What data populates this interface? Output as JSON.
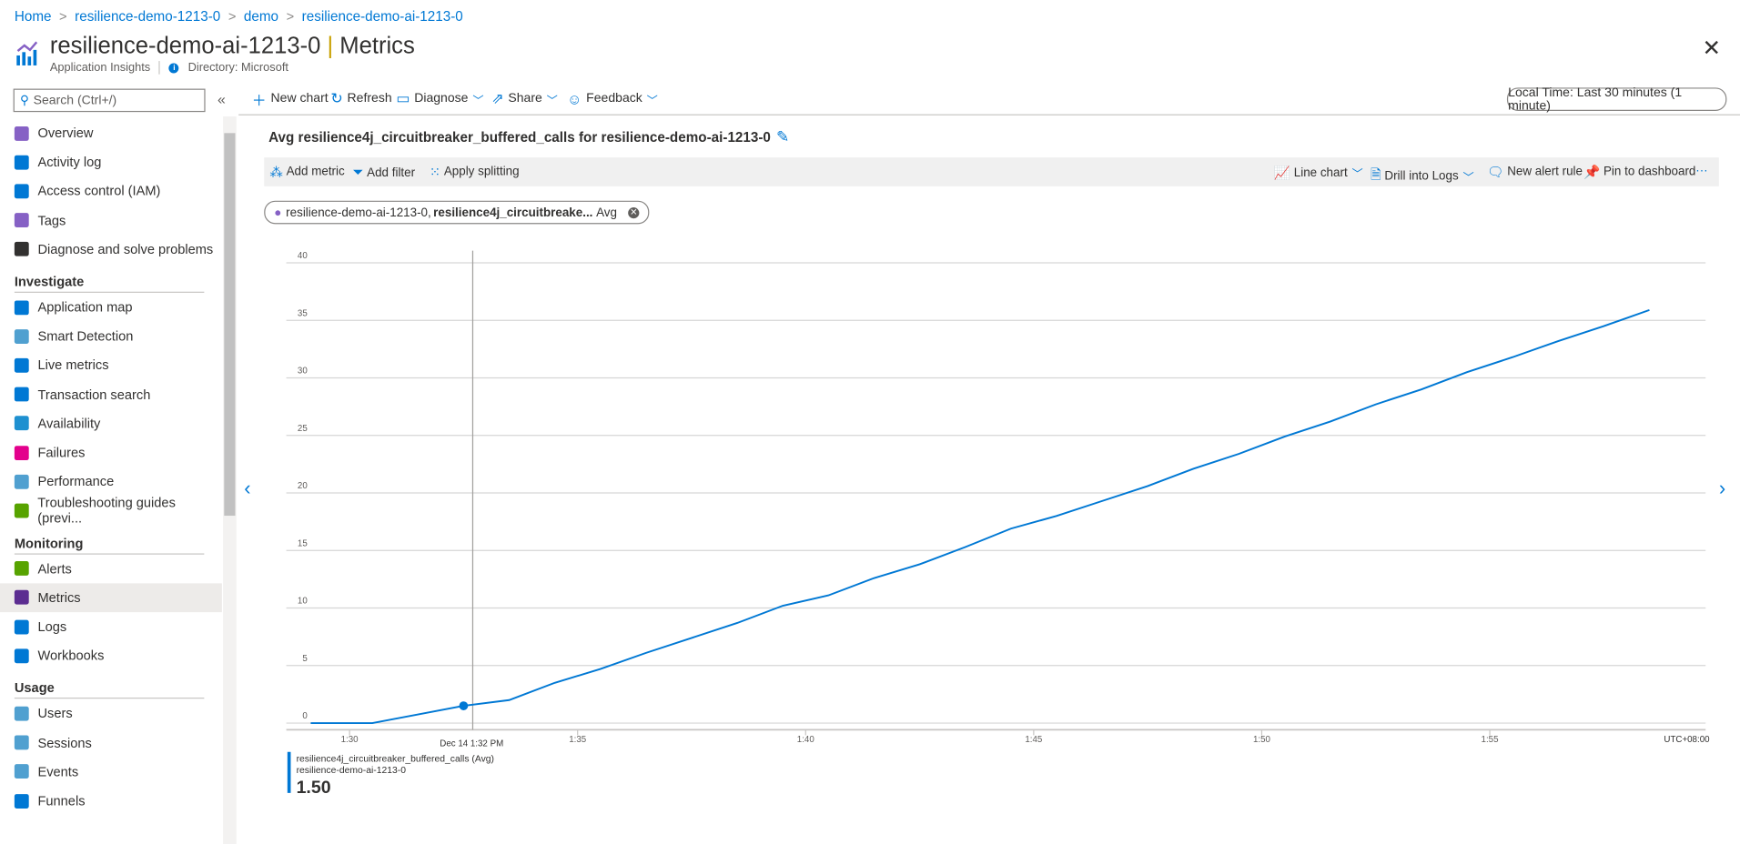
{
  "breadcrumb": [
    "Home",
    "resilience-demo-1213-0",
    "demo",
    "resilience-demo-ai-1213-0"
  ],
  "header": {
    "resource": "resilience-demo-ai-1213-0",
    "page": "Metrics",
    "subtitle": "Application Insights",
    "directory": "Directory: Microsoft"
  },
  "search": {
    "placeholder": "Search (Ctrl+/)"
  },
  "sidebar": {
    "top": [
      {
        "label": "Overview",
        "icon": "lightbulb-icon",
        "color": "#8661c5"
      },
      {
        "label": "Activity log",
        "icon": "log-icon",
        "color": "#0078d4"
      },
      {
        "label": "Access control (IAM)",
        "icon": "people-icon",
        "color": "#0078d4"
      },
      {
        "label": "Tags",
        "icon": "tag-icon",
        "color": "#8661c5"
      },
      {
        "label": "Diagnose and solve problems",
        "icon": "wrench-icon",
        "color": "#323130"
      }
    ],
    "sections": [
      {
        "title": "Investigate",
        "items": [
          {
            "label": "Application map",
            "icon": "app-map-icon",
            "color": "#0078d4"
          },
          {
            "label": "Smart Detection",
            "icon": "smart-detection-icon",
            "color": "#50a0d0"
          },
          {
            "label": "Live metrics",
            "icon": "pulse-icon",
            "color": "#0078d4"
          },
          {
            "label": "Transaction search",
            "icon": "search-icon",
            "color": "#0078d4"
          },
          {
            "label": "Availability",
            "icon": "globe-icon",
            "color": "#1e90d0"
          },
          {
            "label": "Failures",
            "icon": "failures-icon",
            "color": "#e3008c"
          },
          {
            "label": "Performance",
            "icon": "performance-icon",
            "color": "#50a0d0"
          },
          {
            "label": "Troubleshooting guides (previ...",
            "icon": "guide-icon",
            "color": "#57a300"
          }
        ]
      },
      {
        "title": "Monitoring",
        "items": [
          {
            "label": "Alerts",
            "icon": "alert-icon",
            "color": "#57a300"
          },
          {
            "label": "Metrics",
            "icon": "metrics-icon",
            "color": "#5c2d91",
            "active": true
          },
          {
            "label": "Logs",
            "icon": "logs-icon",
            "color": "#0078d4"
          },
          {
            "label": "Workbooks",
            "icon": "workbook-icon",
            "color": "#0078d4"
          }
        ]
      },
      {
        "title": "Usage",
        "items": [
          {
            "label": "Users",
            "icon": "user-icon",
            "color": "#50a0d0"
          },
          {
            "label": "Sessions",
            "icon": "sessions-icon",
            "color": "#50a0d0"
          },
          {
            "label": "Events",
            "icon": "events-icon",
            "color": "#50a0d0"
          },
          {
            "label": "Funnels",
            "icon": "funnel-icon",
            "color": "#0078d4"
          }
        ]
      }
    ]
  },
  "toolbar": {
    "new_chart": "New chart",
    "refresh": "Refresh",
    "diagnose": "Diagnose",
    "share": "Share",
    "feedback": "Feedback",
    "time_range": "Local Time: Last 30 minutes (1 minute)"
  },
  "chart_title": "Avg resilience4j_circuitbreaker_buffered_calls for resilience-demo-ai-1213-0",
  "metric_toolbar": {
    "add_metric": "Add metric",
    "add_filter": "Add filter",
    "apply_splitting": "Apply splitting",
    "line_chart": "Line chart",
    "drill_logs": "Drill into Logs",
    "new_alert": "New alert rule",
    "pin": "Pin to dashboard",
    "more": "···"
  },
  "pill": {
    "resource": "resilience-demo-ai-1213-0,",
    "metric": "resilience4j_circuitbreake...",
    "agg": "Avg"
  },
  "chart_data": {
    "type": "line",
    "x": [
      "1:29",
      "1:30",
      "1:31",
      "1:32",
      "1:33",
      "1:34",
      "1:35",
      "1:36",
      "1:37",
      "1:38",
      "1:39",
      "1:40",
      "1:41",
      "1:42",
      "1:43",
      "1:44",
      "1:45",
      "1:46",
      "1:47",
      "1:48",
      "1:49",
      "1:50",
      "1:51",
      "1:52",
      "1:53",
      "1:54",
      "1:55",
      "1:56",
      "1:57",
      "1:58"
    ],
    "series": [
      {
        "name": "resilience4j_circuitbreaker_buffered_calls (Avg)",
        "values": [
          0,
          0,
          0.75,
          1.5,
          2.0,
          3.5,
          4.7,
          6.1,
          7.4,
          8.7,
          10.2,
          11.1,
          12.6,
          13.8,
          15.3,
          16.9,
          18.0,
          19.3,
          20.6,
          22.1,
          23.4,
          24.9,
          26.2,
          27.7,
          29.0,
          30.5,
          31.8,
          33.2,
          34.5,
          35.9
        ],
        "color": "#0078d4"
      }
    ],
    "ylim": [
      0,
      40
    ],
    "yticks": [
      "0",
      "5",
      "10",
      "15",
      "20",
      "25",
      "30",
      "35",
      "40"
    ],
    "xticks": [
      "1:30",
      "1:35",
      "1:40",
      "1:45",
      "1:50",
      "1:55"
    ],
    "timezone": "UTC+08:00",
    "cursor_label": "Dec 14 1:32 PM",
    "grid": true
  },
  "legend": {
    "metric": "resilience4j_circuitbreaker_buffered_calls (Avg)",
    "resource": "resilience-demo-ai-1213-0",
    "value": "1.50"
  }
}
